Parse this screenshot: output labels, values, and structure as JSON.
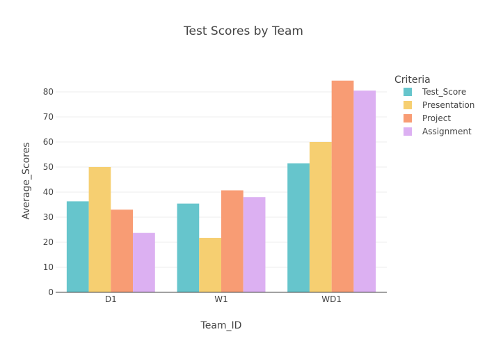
{
  "chart_data": {
    "type": "bar",
    "title": "Test Scores by Team",
    "xlabel": "Team_ID",
    "ylabel": "Average_Scores",
    "categories": [
      "D1",
      "W1",
      "WD1"
    ],
    "ylim": [
      0,
      90
    ],
    "yticks": [
      0,
      10,
      20,
      30,
      40,
      50,
      60,
      70,
      80
    ],
    "grid": true,
    "legend": {
      "title": "Criteria",
      "placement": "top-right"
    },
    "series": [
      {
        "name": "Test_Score",
        "color": "#66c5cc",
        "values": [
          36.3,
          35.4,
          51.5
        ]
      },
      {
        "name": "Presentation",
        "color": "#f6cf71",
        "values": [
          50.0,
          21.7,
          60.0
        ]
      },
      {
        "name": "Project",
        "color": "#f89c74",
        "values": [
          33.0,
          40.7,
          84.5
        ]
      },
      {
        "name": "Assignment",
        "color": "#dcb0f2",
        "values": [
          23.7,
          38.0,
          80.5
        ]
      }
    ]
  }
}
